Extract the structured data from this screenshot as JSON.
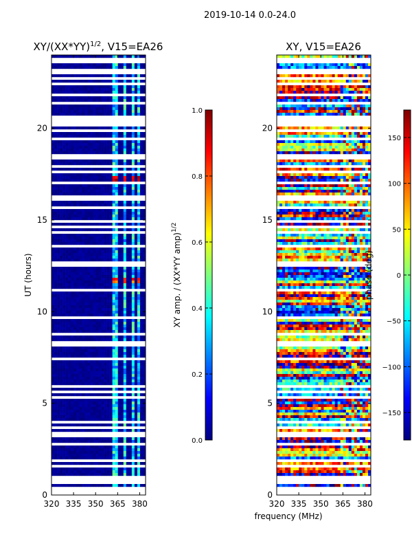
{
  "figure_title": "2019-10-14 0.0-24.0",
  "shared_xlabel": "frequency (MHz)",
  "colors": {
    "jet": [
      "#00007f",
      "#0000ff",
      "#007fff",
      "#00ffff",
      "#7fff7f",
      "#ffff00",
      "#ff7f00",
      "#ff0000",
      "#7f0000"
    ],
    "background": "#ffffff"
  },
  "chart_data": [
    {
      "type": "heatmap",
      "title_main": "XY/(XX*YY)",
      "title_exp": "1/2",
      "title_suffix": ", V15=EA26",
      "xlabel": "",
      "ylabel": "UT (hours)",
      "xlim": [
        320,
        384
      ],
      "ylim": [
        0,
        24
      ],
      "xticks": [
        "320",
        "335",
        "350",
        "365",
        "380"
      ],
      "xtick_values": [
        320,
        335,
        350,
        365,
        380
      ],
      "yticks": [
        "0",
        "5",
        "10",
        "15",
        "20"
      ],
      "ytick_values": [
        0,
        5,
        10,
        15,
        20
      ],
      "colorbar": {
        "label_main": "XY amp. / (XX*YY amp)",
        "label_exp": "1/2",
        "range": [
          0.0,
          1.0
        ],
        "ticks": [
          "0.0",
          "0.2",
          "0.4",
          "0.6",
          "0.8",
          "1.0"
        ],
        "tick_values": [
          0.0,
          0.2,
          0.4,
          0.6,
          0.8,
          1.0
        ]
      },
      "pattern": "low amplitude (~0) across most channels; bright vertical stripes near 362-381 MHz with values up to ~1 around 17.2 h and 11.7 h; many blank (flagged) time rows"
    },
    {
      "type": "heatmap",
      "title_main": "XY, V15=EA26",
      "xlabel": "",
      "ylabel": "",
      "xlim": [
        320,
        384
      ],
      "ylim": [
        0,
        24
      ],
      "xticks": [
        "320",
        "335",
        "350",
        "365",
        "380"
      ],
      "xtick_values": [
        320,
        335,
        350,
        365,
        380
      ],
      "yticks": [
        "0",
        "5",
        "10",
        "15",
        "20"
      ],
      "ytick_values": [
        0,
        5,
        10,
        15,
        20
      ],
      "colorbar": {
        "label_main": "phase (deg)",
        "range": [
          -180,
          180
        ],
        "ticks": [
          "−150",
          "−100",
          "−50",
          "0",
          "50",
          "100",
          "150"
        ],
        "tick_values": [
          -150,
          -100,
          -50,
          0,
          50,
          100,
          150
        ]
      },
      "pattern": "phase values scattered across full -180..180 range with horizontal banding; many blank (flagged) time rows"
    }
  ]
}
